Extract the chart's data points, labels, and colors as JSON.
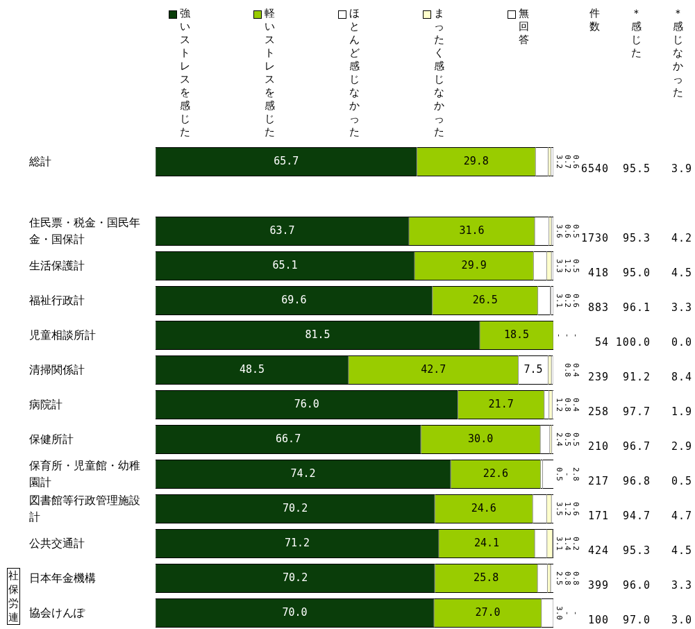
{
  "chart_data": {
    "type": "bar",
    "orientation": "horizontal",
    "stacked": true,
    "legend": "top",
    "tick_labels": "y",
    "xlim": [
      0,
      100
    ],
    "categories": [
      "総計",
      null,
      "住民票・税金・国民年金・国保計",
      "生活保護計",
      "福祉行政計",
      "児童相談所計",
      "清掃関係計",
      "病院計",
      "保健所計",
      "保育所・児童館・幼稚園計",
      "図書館等行政管理施設計",
      "公共交通計",
      "日本年金機構",
      "協会けんぽ"
    ],
    "series": [
      {
        "name": "強いストレスを感じた",
        "color": "#0a3d0a",
        "values": [
          65.7,
          null,
          63.7,
          65.1,
          69.6,
          81.5,
          48.5,
          76.0,
          66.7,
          74.2,
          70.2,
          71.2,
          70.2,
          70.0
        ],
        "value_labels": [
          "65.7",
          null,
          "63.7",
          "65.1",
          "69.6",
          "81.5",
          "48.5",
          "76.0",
          "66.7",
          "74.2",
          "70.2",
          "71.2",
          "70.2",
          "70.0"
        ]
      },
      {
        "name": "軽いストレスを感じた",
        "color": "#99cc00",
        "values": [
          29.8,
          null,
          31.6,
          29.9,
          26.5,
          18.5,
          42.7,
          21.7,
          30.0,
          22.6,
          24.6,
          24.1,
          25.8,
          27.0
        ],
        "value_labels": [
          "29.8",
          null,
          "31.6",
          "29.9",
          "26.5",
          "18.5",
          "42.7",
          "21.7",
          "30.0",
          "22.6",
          "24.6",
          "24.1",
          "25.8",
          "27.0"
        ]
      },
      {
        "name": "ほとんど感じなかった",
        "color": "#ffffff",
        "values": [
          3.2,
          null,
          3.6,
          3.3,
          3.1,
          0,
          7.5,
          1.2,
          2.4,
          0.5,
          3.5,
          3.1,
          2.5,
          3.0
        ],
        "value_labels": [
          "3.2",
          null,
          "3.6",
          "3.3",
          "3.1",
          "-",
          "7.5",
          "1.2",
          "2.4",
          "0.5",
          "3.5",
          "3.1",
          "2.5",
          "3.0"
        ]
      },
      {
        "name": "まったく感じなかった",
        "color": "#ffffcc",
        "values": [
          0.7,
          null,
          0.6,
          1.2,
          0.2,
          0,
          0.8,
          0.8,
          0.5,
          0,
          1.2,
          1.4,
          0.8,
          0
        ],
        "value_labels": [
          "0.7",
          null,
          "0.6",
          "1.2",
          "0.2",
          "-",
          "0.8",
          "0.8",
          "0.5",
          "-",
          "1.2",
          "1.4",
          "0.8",
          "-"
        ]
      },
      {
        "name": "無回答",
        "color": "#ffffff",
        "values": [
          0.6,
          null,
          0.5,
          0.5,
          0.6,
          0,
          0.4,
          0.4,
          0.5,
          2.8,
          0.6,
          0.2,
          0.8,
          0
        ],
        "value_labels": [
          "0.6",
          null,
          "0.5",
          "0.5",
          "0.6",
          "-",
          "0.4",
          "0.4",
          "0.5",
          "2.8",
          "0.6",
          "0.2",
          "0.8",
          "-"
        ]
      }
    ],
    "annotations": [
      "件数",
      "＊感じた",
      "＊感じなかった",
      "社保労連",
      "6540",
      "95.5",
      "3.9",
      "1730",
      "95.3",
      "4.2",
      "418",
      "95.0",
      "4.5",
      "883",
      "96.1",
      "3.3",
      "54",
      "100.0",
      "0.0",
      "239",
      "91.2",
      "8.4",
      "258",
      "97.7",
      "1.9",
      "210",
      "96.7",
      "2.9",
      "217",
      "96.8",
      "0.5",
      "171",
      "94.7",
      "4.7",
      "424",
      "95.3",
      "4.5",
      "399",
      "96.0",
      "3.3",
      "100",
      "97.0",
      "3.0"
    ]
  }
}
